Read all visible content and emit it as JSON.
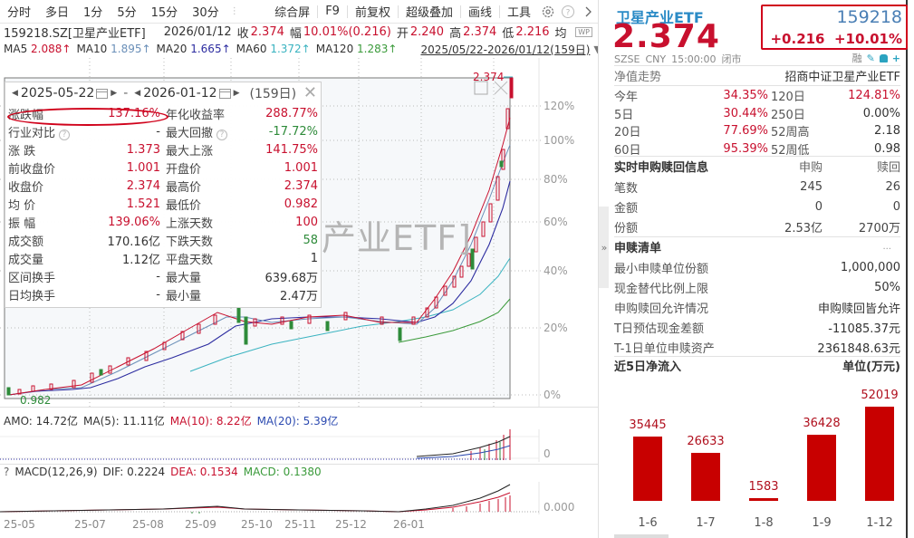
{
  "toolbar": {
    "tabs": [
      "分时",
      "多日",
      "1分",
      "5分",
      "15分",
      "30分"
    ],
    "right_tabs": [
      "综合屏",
      "F9",
      "前复权",
      "超级叠加",
      "画线",
      "工具"
    ],
    "icons": [
      "gear-icon",
      "help-icon",
      "chevron-right-icon"
    ]
  },
  "info": {
    "symbol": "159218.SZ[卫星产业ETF]",
    "date": "2026/01/12",
    "close_label": "收",
    "close": "2.374",
    "chg_label": "幅",
    "chg": "10.01%(0.216)",
    "open_label": "开",
    "open": "2.240",
    "high_label": "高",
    "high": "2.374",
    "low_label": "低",
    "low": "2.216",
    "avg_label": "均",
    "wp_label": "WP"
  },
  "ma": {
    "items": [
      {
        "label": "MA5",
        "value": "2.088↑",
        "color": "#c8102e"
      },
      {
        "label": "MA10",
        "value": "1.895↑",
        "color": "#6a8fb8"
      },
      {
        "label": "MA20",
        "value": "1.665↑",
        "color": "#2c2ca0"
      },
      {
        "label": "MA60",
        "value": "1.372↑",
        "color": "#3ab3c0"
      },
      {
        "label": "MA120",
        "value": "1.283↑",
        "color": "#3a9a3a"
      }
    ],
    "range": "2025/05/22-2026/01/12(159日)"
  },
  "popup": {
    "start_date": "2025-05-22",
    "end_date": "2026-01-12",
    "days": "(159日)",
    "rows": [
      {
        "l1": "涨跌幅",
        "v1": "137.16%",
        "c1": "red",
        "l2": "年化收益率",
        "v2": "288.77%",
        "c2": "red"
      },
      {
        "l1": "行业对比",
        "v1": "-",
        "c1": "",
        "l2": "最大回撤",
        "v2": "-17.72%",
        "c2": "green"
      },
      {
        "l1": "涨  跌",
        "v1": "1.373",
        "c1": "red",
        "l2": "最大上涨",
        "v2": "141.75%",
        "c2": "red"
      },
      {
        "l1": "前收盘价",
        "v1": "1.001",
        "c1": "red",
        "l2": "开盘价",
        "v2": "1.001",
        "c2": "red"
      },
      {
        "l1": "收盘价",
        "v1": "2.374",
        "c1": "red",
        "l2": "最高价",
        "v2": "2.374",
        "c2": "red"
      },
      {
        "l1": "均  价",
        "v1": "1.521",
        "c1": "red",
        "l2": "最低价",
        "v2": "0.982",
        "c2": "red"
      },
      {
        "l1": "振  幅",
        "v1": "139.06%",
        "c1": "red",
        "l2": "上涨天数",
        "v2": "100",
        "c2": "red"
      },
      {
        "l1": "成交额",
        "v1": "170.16亿",
        "c1": "",
        "l2": "下跌天数",
        "v2": "58",
        "c2": "green"
      },
      {
        "l1": "成交量",
        "v1": "1.12亿",
        "c1": "",
        "l2": "平盘天数",
        "v2": "1",
        "c2": ""
      },
      {
        "l1": "区间换手",
        "v1": "-",
        "c1": "",
        "l2": "最大量",
        "v2": "639.68万",
        "c2": ""
      },
      {
        "l1": "日均换手",
        "v1": "-",
        "c1": "",
        "l2": "最小量",
        "v2": "2.47万",
        "c2": ""
      }
    ]
  },
  "chart": {
    "watermark": "产业ETF]",
    "max_label": "2.374",
    "min_label": "0.982",
    "y_ticks": [
      "120%",
      "100%",
      "80%",
      "60%",
      "40%",
      "20%",
      "0%"
    ],
    "x_ticks": [
      "25-05",
      "25-07",
      "25-08",
      "25-09",
      "25-10",
      "25-11",
      "25-12",
      "26-01"
    ]
  },
  "amo": {
    "label": "AMO: 14.72亿",
    "ma5": "MA(5): 11.11亿",
    "ma10": "MA(10): 8.22亿",
    "ma20": "MA(20): 5.39亿",
    "zero": "0"
  },
  "macd": {
    "q": "?",
    "label": "MACD(12,26,9)",
    "dif": "DIF: 0.2224",
    "dea": "DEA: 0.1534",
    "macd": "MACD: 0.1380",
    "zero": "0.000"
  },
  "quote": {
    "name": "卫星产业ETF",
    "price": "2.374",
    "code": "159218",
    "change": "+0.216",
    "change_pct": "+10.01%",
    "exchange": "SZSE",
    "currency": "CNY",
    "time": "15:00:00",
    "status": "闭市",
    "margin_label": "融",
    "nav_label": "净值走势",
    "fund_name": "招商中证卫星产业ETF"
  },
  "performance": [
    {
      "l1": "今年",
      "v1": "34.35%",
      "l2": "120日",
      "v2": "124.81%",
      "c2": "red"
    },
    {
      "l1": "5日",
      "v1": "30.44%",
      "l2": "250日",
      "v2": "0.00%",
      "c2": ""
    },
    {
      "l1": "20日",
      "v1": "77.69%",
      "l2": "52周高",
      "v2": "2.18",
      "c2": ""
    },
    {
      "l1": "60日",
      "v1": "95.39%",
      "l2": "52周低",
      "v2": "0.98",
      "c2": ""
    }
  ],
  "subscription": {
    "title": "实时申购赎回信息",
    "col_buy": "申购",
    "col_sell": "赎回",
    "rows": [
      {
        "label": "笔数",
        "buy": "245",
        "sell": "26"
      },
      {
        "label": "金额",
        "buy": "0",
        "sell": "0"
      },
      {
        "label": "份额",
        "buy": "2.53亿",
        "sell": "2700万"
      }
    ]
  },
  "creation_list": {
    "title": "申赎清单",
    "more": "...",
    "rows": [
      {
        "label": "最小申赎单位份额",
        "value": "1,000,000"
      },
      {
        "label": "现金替代比例上限",
        "value": "50%"
      },
      {
        "label": "申购赎回允许情况",
        "value": "申购赎回皆允许"
      },
      {
        "label": "T日预估现金差额",
        "value": "-11085.37元"
      },
      {
        "label": "T-1日单位申赎资产",
        "value": "2361848.63元"
      }
    ]
  },
  "netflow": {
    "title": "近5日净流入",
    "unit": "单位(万元)"
  },
  "chart_data": {
    "type": "bar",
    "title": "近5日净流入",
    "ylabel": "单位(万元)",
    "categories": [
      "1-6",
      "1-7",
      "1-8",
      "1-9",
      "1-12"
    ],
    "values": [
      35445,
      26633,
      1583,
      36428,
      52019
    ],
    "color": "#c80000"
  },
  "divider": {
    "handle": "»"
  }
}
